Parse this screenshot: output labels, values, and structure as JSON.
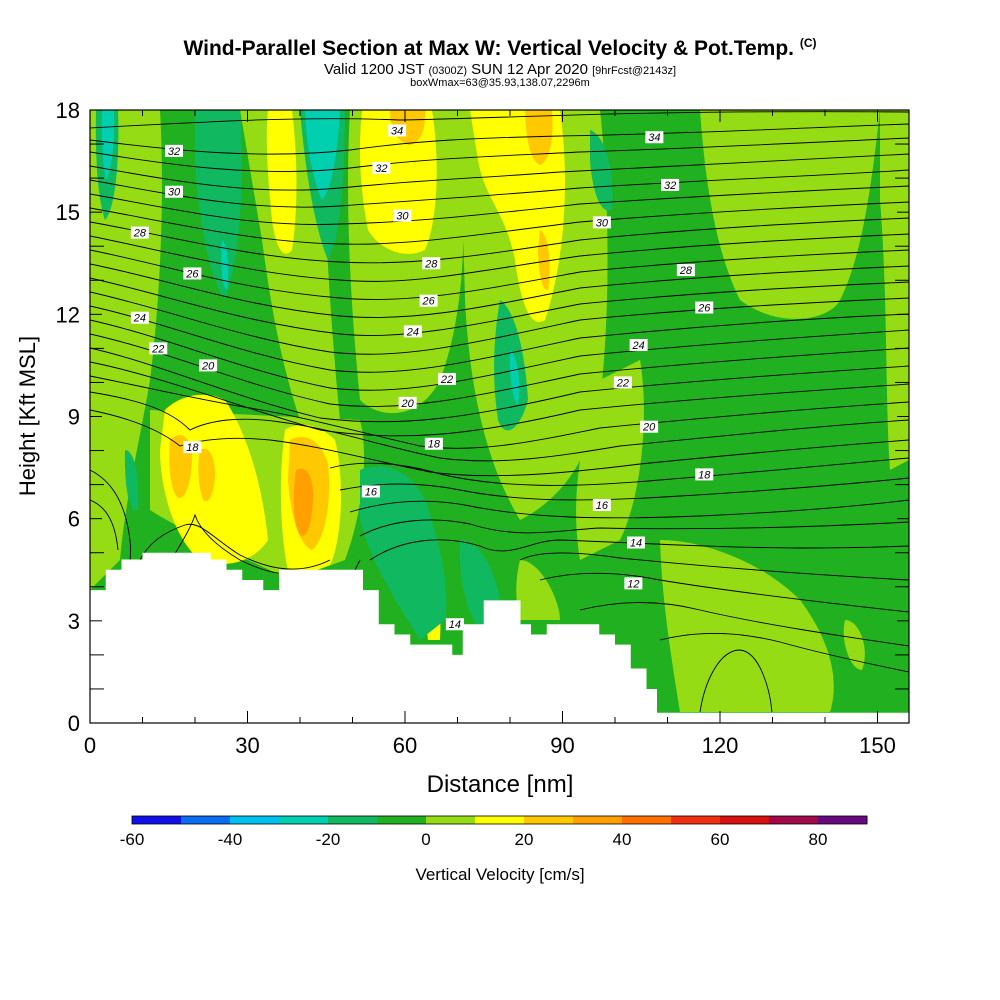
{
  "header": {
    "title": "Wind-Parallel Section at Max W: Vertical Velocity & Pot.Temp.",
    "copyright": "(C)",
    "valid_prefix": "Valid 1200 JST",
    "valid_utc": "(0300Z)",
    "valid_date": "SUN 12 Apr 2020",
    "forecast_info": "[9hrFcst@2143z]",
    "box_info": "boxWmax=63@35.93,138.07,2296m"
  },
  "chart_data": {
    "type": "heatmap",
    "xlabel": "Distance [nm]",
    "ylabel": "Height [Kft MSL]",
    "xlim": [
      0,
      156
    ],
    "ylim": [
      0,
      18
    ],
    "xticks": [
      0,
      30,
      60,
      90,
      120,
      150
    ],
    "yticks": [
      0,
      3,
      6,
      9,
      12,
      15,
      18
    ],
    "colorbar": {
      "label": "Vertical Velocity [cm/s]",
      "ticks": [
        "-60",
        "-40",
        "-20",
        "0",
        "20",
        "40",
        "60",
        "80"
      ],
      "bounds": [
        -60,
        -50,
        -40,
        -30,
        -20,
        -10,
        0,
        10,
        20,
        30,
        40,
        50,
        60,
        70,
        80,
        90
      ],
      "colors": [
        "#1010e8",
        "#0a6cf0",
        "#00c0f0",
        "#00d0b0",
        "#10b860",
        "#20b020",
        "#96dc14",
        "#ffff00",
        "#ffc800",
        "#ffa000",
        "#ff7000",
        "#f03010",
        "#d81010",
        "#a00848",
        "#680880"
      ]
    },
    "terrain": {
      "distance": [
        0,
        3,
        3,
        6,
        6,
        10,
        10,
        13,
        13,
        23,
        23,
        26,
        26,
        29,
        29,
        33,
        33,
        36,
        36,
        42,
        42,
        48,
        48,
        52,
        52,
        55,
        55,
        58,
        58,
        61,
        61,
        65,
        65,
        69,
        69,
        71,
        71,
        75,
        75,
        78,
        78,
        82,
        82,
        84,
        84,
        87,
        87,
        91,
        91,
        97,
        97,
        100,
        100,
        103,
        103,
        106,
        106,
        108,
        108,
        110,
        110,
        156
      ],
      "height_kft": [
        3.9,
        3.9,
        4.5,
        4.5,
        4.8,
        4.8,
        5.0,
        5.0,
        5.0,
        5.0,
        4.8,
        4.8,
        4.5,
        4.5,
        4.2,
        4.2,
        3.9,
        3.9,
        4.5,
        4.5,
        4.5,
        4.5,
        4.5,
        4.5,
        3.9,
        3.9,
        2.9,
        2.9,
        2.6,
        2.6,
        2.3,
        2.3,
        2.3,
        2.3,
        2.0,
        2.0,
        2.9,
        2.9,
        3.6,
        3.6,
        3.6,
        3.6,
        2.9,
        2.9,
        2.6,
        2.6,
        2.9,
        2.9,
        2.9,
        2.9,
        2.6,
        2.6,
        2.3,
        2.3,
        1.6,
        1.6,
        1.0,
        1.0,
        0.3,
        0.3,
        0.3,
        0.3
      ]
    },
    "contour_labels": [
      {
        "text": "34",
        "x": 58.5,
        "y": 17.4
      },
      {
        "text": "34",
        "x": 107.5,
        "y": 17.2
      },
      {
        "text": "32",
        "x": 16,
        "y": 16.8
      },
      {
        "text": "32",
        "x": 55.5,
        "y": 16.3
      },
      {
        "text": "32",
        "x": 110.5,
        "y": 15.8
      },
      {
        "text": "30",
        "x": 16,
        "y": 15.6
      },
      {
        "text": "30",
        "x": 59.5,
        "y": 14.9
      },
      {
        "text": "30",
        "x": 97.5,
        "y": 14.7
      },
      {
        "text": "28",
        "x": 9.5,
        "y": 14.4
      },
      {
        "text": "28",
        "x": 65,
        "y": 13.5
      },
      {
        "text": "28",
        "x": 113.5,
        "y": 13.3
      },
      {
        "text": "26",
        "x": 19.5,
        "y": 13.2
      },
      {
        "text": "26",
        "x": 64.5,
        "y": 12.4
      },
      {
        "text": "26",
        "x": 117,
        "y": 12.2
      },
      {
        "text": "24",
        "x": 9.5,
        "y": 11.9
      },
      {
        "text": "24",
        "x": 61.5,
        "y": 11.5
      },
      {
        "text": "24",
        "x": 104.5,
        "y": 11.1
      },
      {
        "text": "22",
        "x": 13,
        "y": 11.0
      },
      {
        "text": "22",
        "x": 68,
        "y": 10.1
      },
      {
        "text": "22",
        "x": 101.5,
        "y": 10.0
      },
      {
        "text": "20",
        "x": 22.5,
        "y": 10.5
      },
      {
        "text": "20",
        "x": 60.5,
        "y": 9.4
      },
      {
        "text": "20",
        "x": 106.5,
        "y": 8.7
      },
      {
        "text": "18",
        "x": 19.5,
        "y": 8.1
      },
      {
        "text": "18",
        "x": 65.5,
        "y": 8.2
      },
      {
        "text": "18",
        "x": 117,
        "y": 7.3
      },
      {
        "text": "16",
        "x": 53.5,
        "y": 6.8
      },
      {
        "text": "16",
        "x": 97.5,
        "y": 6.4
      },
      {
        "text": "14",
        "x": 104,
        "y": 5.3
      },
      {
        "text": "14",
        "x": 69.5,
        "y": 2.9
      },
      {
        "text": "12",
        "x": 103.5,
        "y": 4.1
      }
    ]
  }
}
